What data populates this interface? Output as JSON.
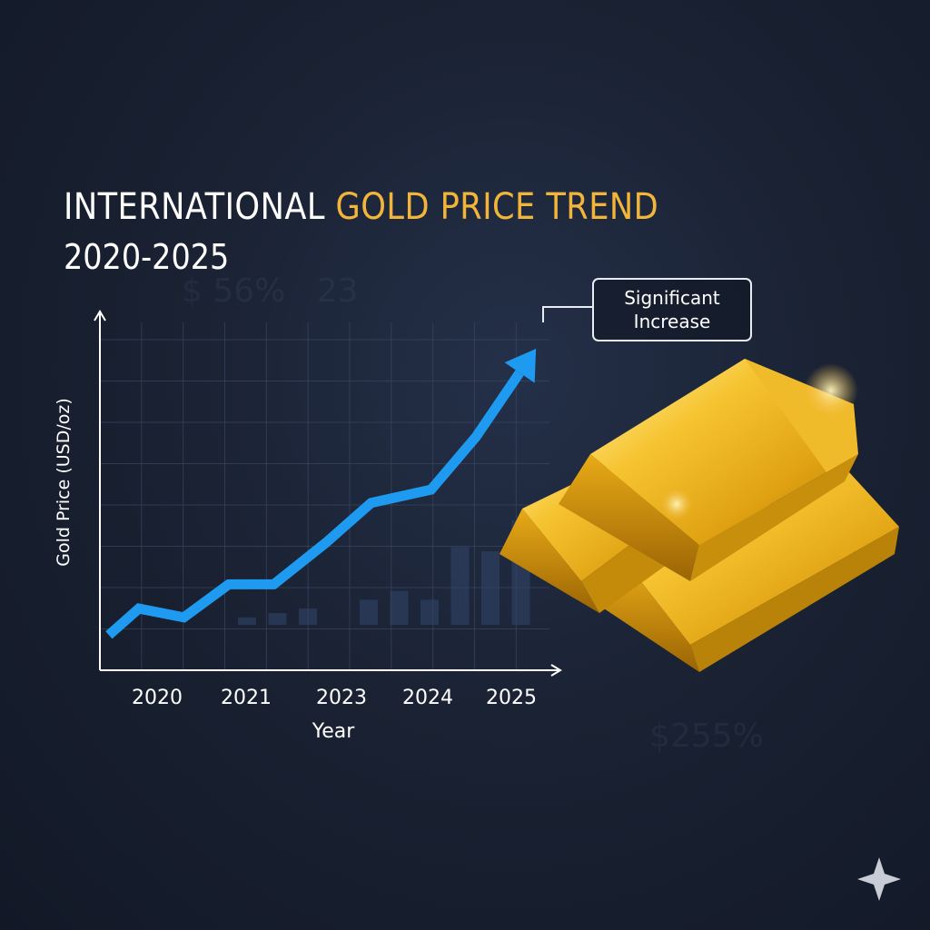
{
  "title": {
    "part1": "INTERNATIONAL ",
    "part2": "GOLD PRICE TREND",
    "subtitle": "2020-2025"
  },
  "callout": "Significant Increase",
  "colors": {
    "accent_gold": "#f2b53a",
    "trend_line": "#1e9bf0",
    "background": "#1a2233",
    "grid": "#3a4660"
  },
  "icons": [
    "gold-bars-illustration",
    "sparkle-icon"
  ],
  "chart_data": {
    "type": "line",
    "title": "INTERNATIONAL GOLD PRICE TREND 2020-2025",
    "xlabel": "Year",
    "ylabel": "Gold Price (USD/oz)",
    "x_tick_labels": [
      "2020",
      "2021",
      "2023",
      "2024",
      "2025"
    ],
    "grid": true,
    "series": [
      {
        "x": [
          2019.6,
          2020.0,
          2020.6,
          2021.2,
          2021.8,
          2022.5,
          2023.1,
          2023.9,
          2024.5,
          2025.3
        ],
        "values": [
          8,
          14,
          12,
          19.5,
          19.5,
          29,
          38,
          41,
          53,
          73
        ]
      }
    ],
    "background_bars": [
      6,
      7,
      8,
      10,
      12,
      13,
      14,
      9,
      16,
      18,
      16,
      28,
      27,
      34
    ]
  }
}
